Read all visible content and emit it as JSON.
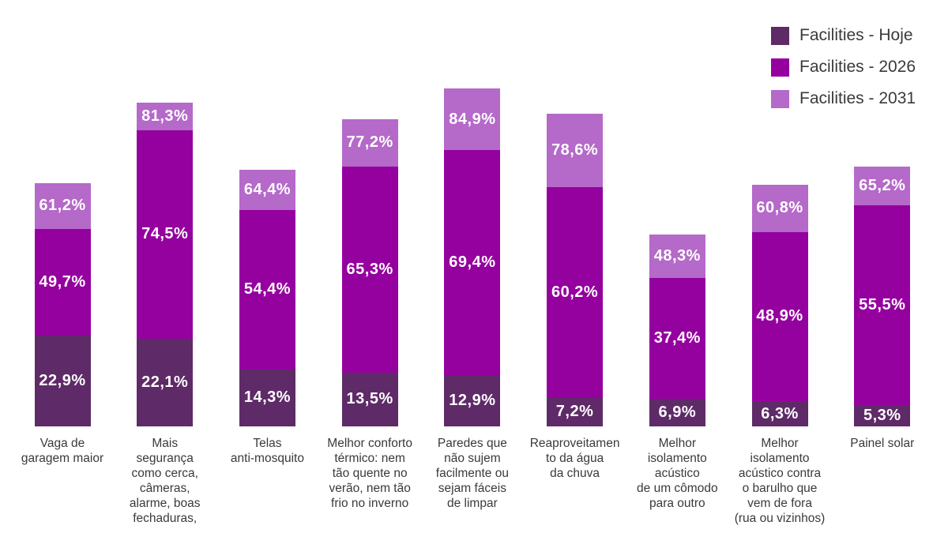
{
  "chart_data": {
    "type": "bar",
    "variant": "stacked-overlay-percent",
    "title": "",
    "xlabel": "",
    "ylabel": "",
    "ylim": [
      0,
      100
    ],
    "grid": false,
    "legend_position": "top-right",
    "value_format": "percent-comma-decimal",
    "categories": [
      "Vaga de garagem maior",
      "Mais segurança como cerca, câmeras, alarme, boas fechaduras,",
      "Telas anti-mosquito",
      "Melhor conforto térmico: nem tão quente no verão, nem tão frio no inverno",
      "Paredes que não sujem facilmente ou sejam fáceis de limpar",
      "Reaproveitamento da água da chuva",
      "Melhor isolamento acústico de um cômodo para outro",
      "Melhor isolamento acústico contra o barulho que vem de fora (rua ou vizinhos)",
      "Painel solar"
    ],
    "categories_display": [
      "Vaga de\ngaragem maior",
      "Mais\nsegurança\ncomo cerca,\ncâmeras,\nalarme, boas\nfechaduras,",
      "Telas\nanti-mosquito",
      "Melhor conforto\ntérmico: nem\ntão quente no\nverão, nem tão\nfrio no inverno",
      "Paredes que\nnão sujem\nfacilmente ou\nsejam fáceis\nde limpar",
      "Reaproveitamen\nto da água\nda chuva",
      "Melhor\nisolamento\nacústico\nde um cômodo\npara outro",
      "Melhor\nisolamento\nacústico contra\no barulho que\nvem de fora\n(rua ou vizinhos)",
      "Painel solar"
    ],
    "series": [
      {
        "name": "Facilities - Hoje",
        "color": "#5f2a68",
        "values": [
          22.9,
          22.1,
          14.3,
          13.5,
          12.9,
          7.2,
          6.9,
          6.3,
          5.3
        ]
      },
      {
        "name": "Facilities - 2026",
        "color": "#95019f",
        "values": [
          49.7,
          74.5,
          54.4,
          65.3,
          69.4,
          60.2,
          37.4,
          48.9,
          55.5
        ]
      },
      {
        "name": "Facilities - 2031",
        "color": "#b569c9",
        "values": [
          61.2,
          81.3,
          64.4,
          77.2,
          84.9,
          78.6,
          48.3,
          60.8,
          65.2
        ]
      }
    ],
    "value_labels": {
      "hoje": [
        "22,9%",
        "22,1%",
        "14,3%",
        "13,5%",
        "12,9%",
        "7,2%",
        "6,9%",
        "6,3%",
        "5,3%"
      ],
      "y2026": [
        "49,7%",
        "74,5%",
        "54,4%",
        "65,3%",
        "69,4%",
        "60,2%",
        "37,4%",
        "48,9%",
        "55,5%"
      ],
      "y2031": [
        "61,2%",
        "81,3%",
        "64,4%",
        "77,2%",
        "84,9%",
        "78,6%",
        "48,3%",
        "60,8%",
        "65,2%"
      ]
    }
  },
  "colors": {
    "background": "#ffffff",
    "value_label_text": "#ffffff",
    "category_text": "#3a3a3a",
    "legend_text": "#3a3a3a"
  }
}
